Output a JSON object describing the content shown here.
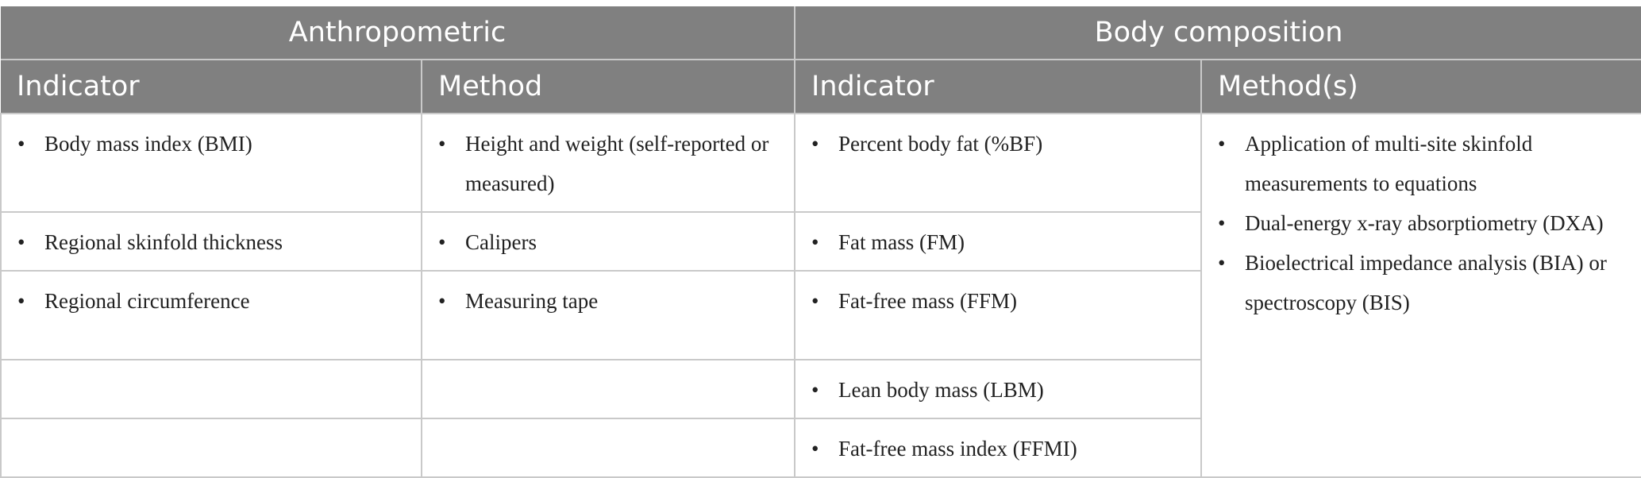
{
  "header": {
    "groups": [
      "Anthropometric",
      "Body composition"
    ],
    "columns": [
      "Indicator",
      "Method",
      "Indicator",
      "Method(s)"
    ]
  },
  "bullet": "•",
  "rows": [
    {
      "anthro_indicator": "Body mass index (BMI)",
      "anthro_method": "Height and weight (self-reported or measured)",
      "body_indicator": "Percent body fat (%BF)"
    },
    {
      "anthro_indicator": "Regional skinfold thickness",
      "anthro_method": "Calipers",
      "body_indicator": "Fat mass (FM)"
    },
    {
      "anthro_indicator": "Regional circumference",
      "anthro_method": "Measuring tape",
      "body_indicator": "Fat-free mass (FFM)"
    },
    {
      "anthro_indicator": "",
      "anthro_method": "",
      "body_indicator": "Lean body mass (LBM)"
    },
    {
      "anthro_indicator": "",
      "anthro_method": "",
      "body_indicator": "Fat-free mass index (FFMI)"
    }
  ],
  "body_methods": [
    "Application of multi-site skinfold measurements to equations",
    "Dual-energy x-ray absorptiometry (DXA)",
    "Bioelectrical impedance analysis (BIA) or spectroscopy (BIS)"
  ]
}
